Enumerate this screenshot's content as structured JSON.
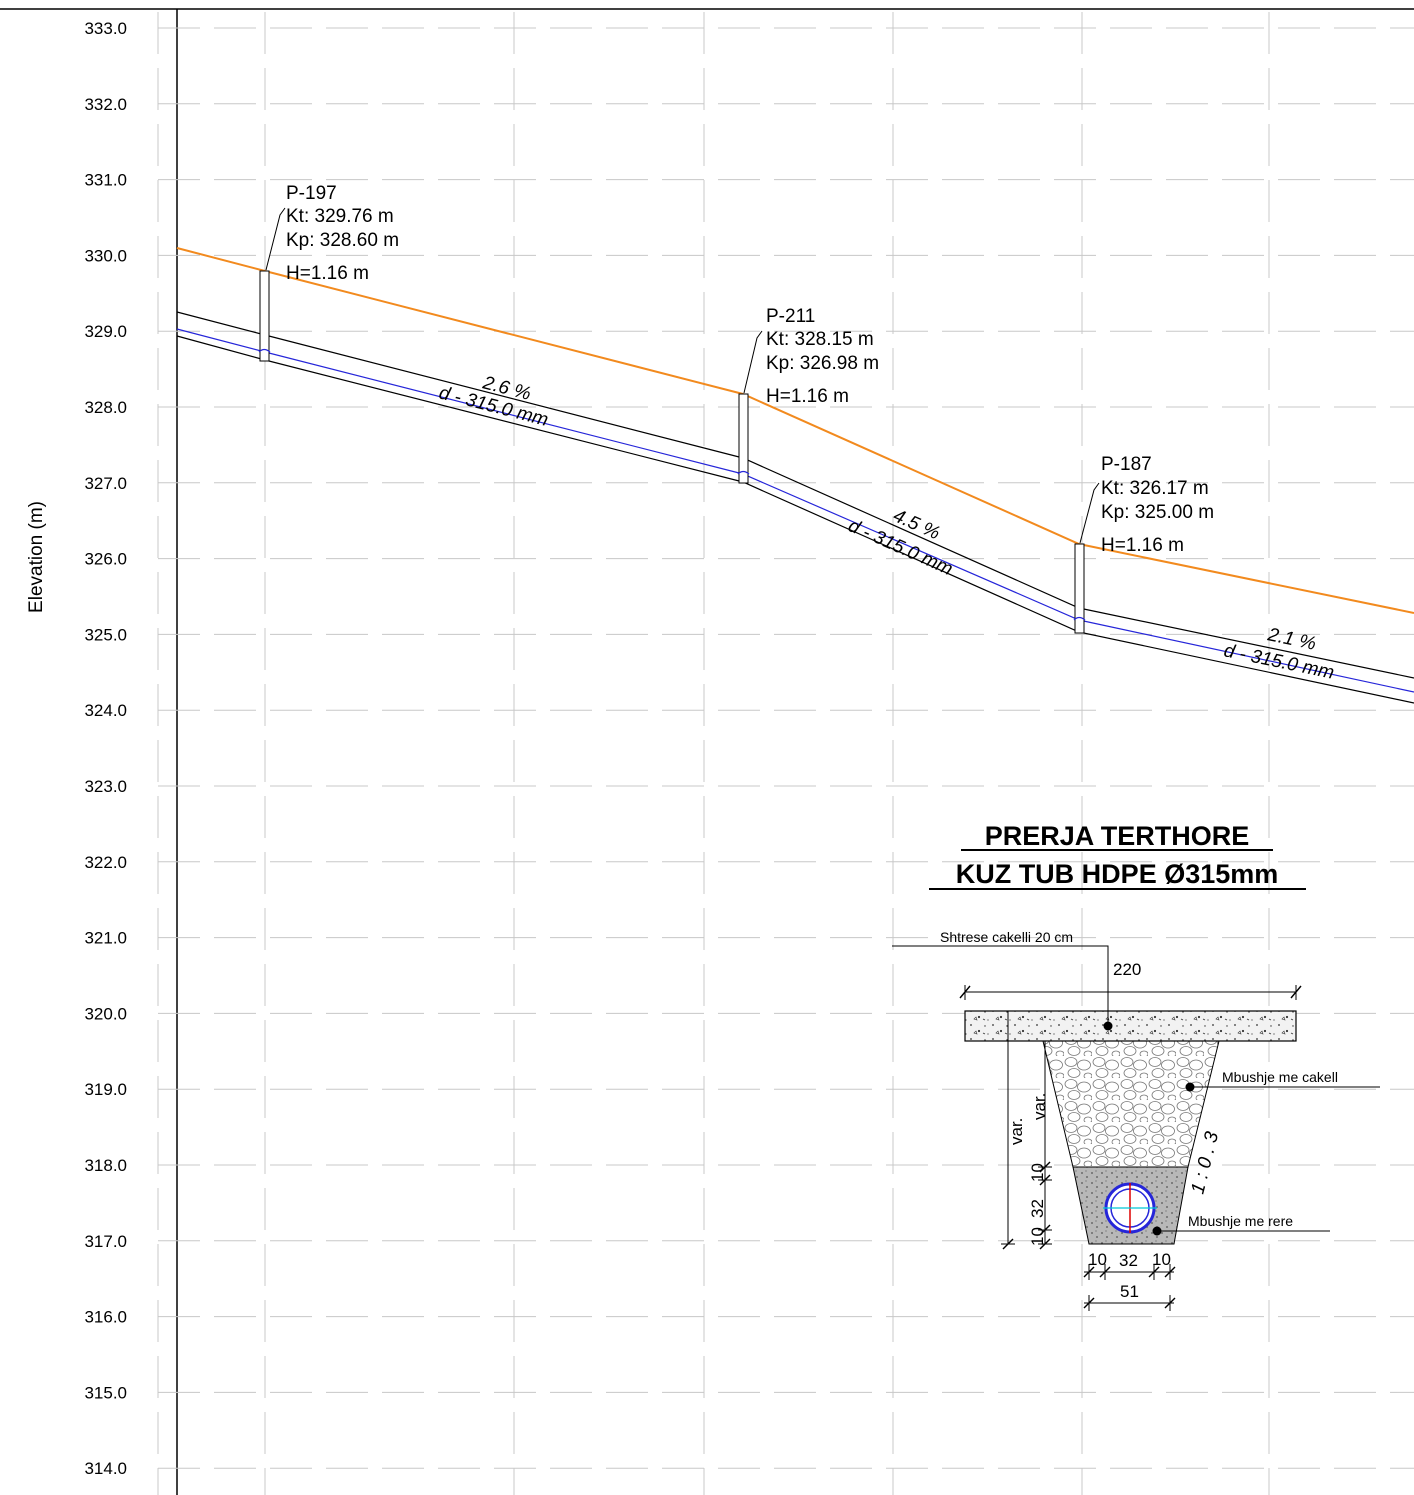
{
  "y_axis": {
    "label": "Elevation (m)",
    "ticks": [
      "333.0",
      "332.0",
      "331.0",
      "330.0",
      "329.0",
      "328.0",
      "327.0",
      "326.0",
      "325.0",
      "324.0",
      "323.0",
      "322.0",
      "321.0",
      "320.0",
      "319.0",
      "318.0",
      "317.0",
      "316.0",
      "315.0",
      "314.0"
    ]
  },
  "colors": {
    "ground": "#f28a1e",
    "pipe_axis": "#2626d9",
    "grid": "#c8c8c8"
  },
  "manholes": [
    {
      "id": "P-197",
      "kt": "Kt: 329.76 m",
      "kp": "Kp: 328.60 m",
      "h": "H=1.16 m"
    },
    {
      "id": "P-211",
      "kt": "Kt: 328.15 m",
      "kp": "Kp: 326.98 m",
      "h": "H=1.16 m"
    },
    {
      "id": "P-187",
      "kt": "Kt: 326.17 m",
      "kp": "Kp: 325.00 m",
      "h": "H=1.16 m"
    }
  ],
  "segments": [
    {
      "slope": "2.6 %",
      "diameter": "d - 315.0 mm"
    },
    {
      "slope": "4.5 %",
      "diameter": "d - 315.0 mm"
    },
    {
      "slope": "2.1 %",
      "diameter": "d - 315.0 mm"
    }
  ],
  "section": {
    "title_line1": "PRERJA TERTHORE",
    "title_line2": "KUZ TUB HDPE Ø315mm",
    "label_gravel_layer": "Shtrese cakelli 20 cm",
    "label_gravel_fill": "Mbushje me cakell",
    "label_sand_fill": "Mbushje me rere",
    "dim_top_width": "220",
    "dim_var_outer": "var.",
    "dim_var_inner": "var.",
    "dim_side_10_top": "10",
    "dim_side_32": "32",
    "dim_side_10_bottom": "10",
    "dim_bottom_10_left": "10",
    "dim_bottom_32": "32",
    "dim_bottom_10_right": "10",
    "dim_bottom_51": "51",
    "slope_ratio": "1 : 0 . 3"
  }
}
